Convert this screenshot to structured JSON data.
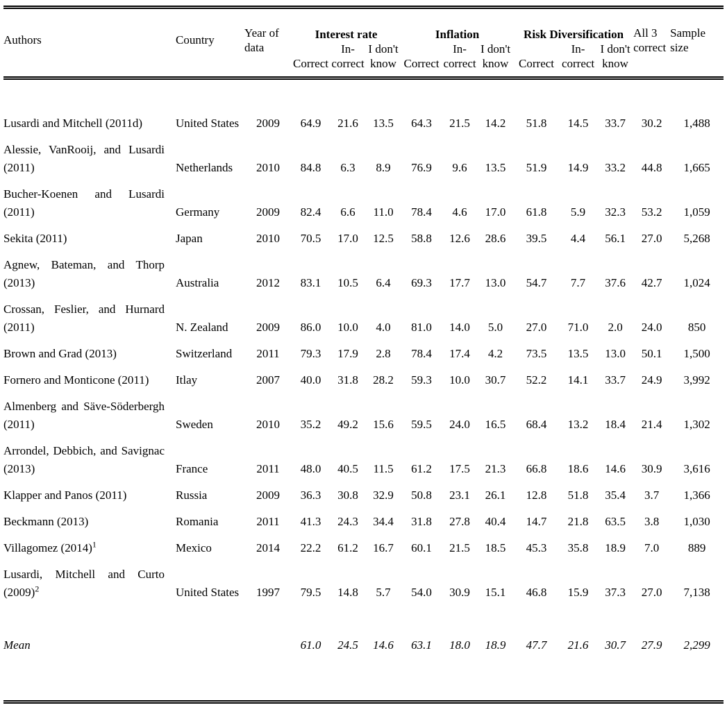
{
  "table": {
    "headers": {
      "authors": "Authors",
      "country": "Country",
      "year": "Year of\ndata",
      "groups": [
        "Interest rate",
        "Inflation",
        "Risk Diversification"
      ],
      "sub": [
        "Correct",
        "In-\ncorrect",
        "I don't\nknow"
      ],
      "all3": "All 3\ncorrect",
      "sample": "Sample\nsize"
    },
    "rows": [
      {
        "authors": "Lusardi and Mitchell (2011d)",
        "sup": "",
        "country": "United States",
        "year": "2009",
        "values": [
          "64.9",
          "21.6",
          "13.5",
          "64.3",
          "21.5",
          "14.2",
          "51.8",
          "14.5",
          "33.7",
          "30.2",
          "1,488"
        ]
      },
      {
        "authors": "Alessie, VanRooij, and Lusardi (2011)",
        "sup": "",
        "country": "Netherlands",
        "year": "2010",
        "values": [
          "84.8",
          "6.3",
          "8.9",
          "76.9",
          "9.6",
          "13.5",
          "51.9",
          "14.9",
          "33.2",
          "44.8",
          "1,665"
        ]
      },
      {
        "authors": "Bucher-Koenen and Lusardi (2011)",
        "sup": "",
        "country": "Germany",
        "year": "2009",
        "values": [
          "82.4",
          "6.6",
          "11.0",
          "78.4",
          "4.6",
          "17.0",
          "61.8",
          "5.9",
          "32.3",
          "53.2",
          "1,059"
        ]
      },
      {
        "authors": "Sekita (2011)",
        "sup": "",
        "country": "Japan",
        "year": "2010",
        "values": [
          "70.5",
          "17.0",
          "12.5",
          "58.8",
          "12.6",
          "28.6",
          "39.5",
          "4.4",
          "56.1",
          "27.0",
          "5,268"
        ]
      },
      {
        "authors": "Agnew, Bateman, and Thorp (2013)",
        "sup": "",
        "country": "Australia",
        "year": "2012",
        "values": [
          "83.1",
          "10.5",
          "6.4",
          "69.3",
          "17.7",
          "13.0",
          "54.7",
          "7.7",
          "37.6",
          "42.7",
          "1,024"
        ]
      },
      {
        "authors": "Crossan, Feslier, and Hurnard (2011)",
        "sup": "",
        "country": "N. Zealand",
        "year": "2009",
        "values": [
          "86.0",
          "10.0",
          "4.0",
          "81.0",
          "14.0",
          "5.0",
          "27.0",
          "71.0",
          "2.0",
          "24.0",
          "850"
        ]
      },
      {
        "authors": "Brown and Grad (2013)",
        "sup": "",
        "country": "Switzerland",
        "year": "2011",
        "values": [
          "79.3",
          "17.9",
          "2.8",
          "78.4",
          "17.4",
          "4.2",
          "73.5",
          "13.5",
          "13.0",
          "50.1",
          "1,500"
        ]
      },
      {
        "authors": "Fornero and Monticone (2011)",
        "sup": "",
        "country": "Itlay",
        "year": "2007",
        "values": [
          "40.0",
          "31.8",
          "28.2",
          "59.3",
          "10.0",
          "30.7",
          "52.2",
          "14.1",
          "33.7",
          "24.9",
          "3,992"
        ]
      },
      {
        "authors": "Almenberg and Säve-Söderbergh (2011)",
        "sup": "",
        "country": "Sweden",
        "year": "2010",
        "values": [
          "35.2",
          "49.2",
          "15.6",
          "59.5",
          "24.0",
          "16.5",
          "68.4",
          "13.2",
          "18.4",
          "21.4",
          "1,302"
        ]
      },
      {
        "authors": "Arrondel, Debbich, and Savignac (2013)",
        "sup": "",
        "country": "France",
        "year": "2011",
        "values": [
          "48.0",
          "40.5",
          "11.5",
          "61.2",
          "17.5",
          "21.3",
          "66.8",
          "18.6",
          "14.6",
          "30.9",
          "3,616"
        ]
      },
      {
        "authors": "Klapper and Panos (2011)",
        "sup": "",
        "country": "Russia",
        "year": "2009",
        "values": [
          "36.3",
          "30.8",
          "32.9",
          "50.8",
          "23.1",
          "26.1",
          "12.8",
          "51.8",
          "35.4",
          "3.7",
          "1,366"
        ]
      },
      {
        "authors": "Beckmann (2013)",
        "sup": "",
        "country": "Romania",
        "year": "2011",
        "values": [
          "41.3",
          "24.3",
          "34.4",
          "31.8",
          "27.8",
          "40.4",
          "14.7",
          "21.8",
          "63.5",
          "3.8",
          "1,030"
        ]
      },
      {
        "authors": "Villagomez (2014)",
        "sup": "1",
        "country": "Mexico",
        "year": "2014",
        "values": [
          "22.2",
          "61.2",
          "16.7",
          "60.1",
          "21.5",
          "18.5",
          "45.3",
          "35.8",
          "18.9",
          "7.0",
          "889"
        ]
      },
      {
        "authors": "Lusardi, Mitchell and Curto (2009)",
        "sup": "2",
        "country": "United States",
        "year": "1997",
        "values": [
          "79.5",
          "14.8",
          "5.7",
          "54.0",
          "30.9",
          "15.1",
          "46.8",
          "15.9",
          "37.3",
          "27.0",
          "7,138"
        ]
      }
    ],
    "mean": {
      "label": "Mean",
      "values": [
        "61.0",
        "24.5",
        "14.6",
        "63.1",
        "18.0",
        "18.9",
        "47.7",
        "21.6",
        "30.7",
        "27.9",
        "2,299"
      ]
    }
  }
}
